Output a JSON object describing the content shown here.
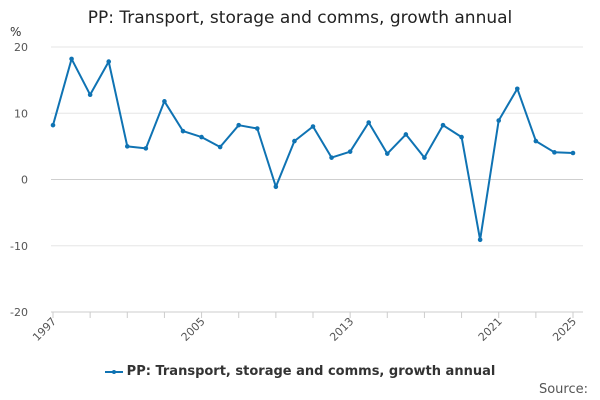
{
  "chart_data": {
    "type": "line",
    "title": "PP: Transport, storage and comms, growth annual",
    "ylabel": "%",
    "xlabel": "",
    "ylim": [
      -20,
      20
    ],
    "yticks": [
      20,
      10,
      0,
      -10,
      -20
    ],
    "xlim": [
      1997,
      2025
    ],
    "xticks": [
      1997,
      2005,
      2013,
      2021,
      2025
    ],
    "x": [
      1997,
      1998,
      1999,
      2000,
      2001,
      2002,
      2003,
      2004,
      2005,
      2006,
      2007,
      2008,
      2009,
      2010,
      2011,
      2012,
      2013,
      2014,
      2015,
      2016,
      2017,
      2018,
      2019,
      2020,
      2021,
      2022,
      2023,
      2024,
      2025
    ],
    "series": [
      {
        "name": "PP: Transport, storage and comms, growth annual",
        "color": "#0f73b3",
        "values": [
          8.2,
          18.2,
          12.8,
          17.8,
          5.0,
          4.7,
          11.8,
          7.3,
          6.4,
          4.9,
          8.2,
          7.7,
          -1.1,
          5.8,
          8.0,
          3.3,
          4.2,
          8.6,
          3.9,
          6.8,
          3.3,
          8.2,
          6.4,
          -9.1,
          8.9,
          13.7,
          5.8,
          4.1,
          4.0
        ]
      }
    ],
    "legend_position": "bottom-center"
  },
  "source_label": "Source:"
}
